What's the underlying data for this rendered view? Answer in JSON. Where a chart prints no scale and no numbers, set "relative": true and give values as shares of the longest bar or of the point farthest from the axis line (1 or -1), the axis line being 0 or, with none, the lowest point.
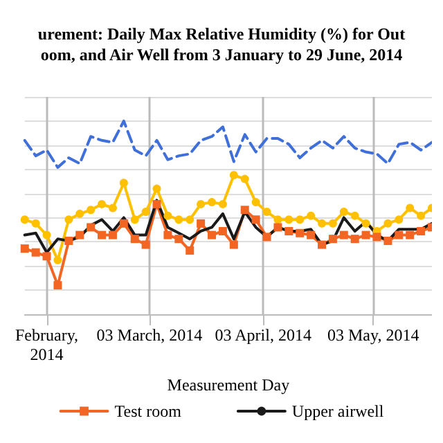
{
  "chart_data": {
    "type": "line",
    "title": "urement: Daily Max Relative Humidity (%) for Out\noom, and Air Well from 3 January to 29 June, 2014",
    "xlabel": "Measurement Day",
    "relative": true,
    "grid": true,
    "legend": "bottom",
    "x": [
      "2014-01-28",
      "2014-01-31",
      "2014-02-03",
      "2014-02-06",
      "2014-02-09",
      "2014-02-12",
      "2014-02-15",
      "2014-02-18",
      "2014-02-21",
      "2014-02-24",
      "2014-02-27",
      "2014-03-02",
      "2014-03-05",
      "2014-03-08",
      "2014-03-11",
      "2014-03-14",
      "2014-03-17",
      "2014-03-20",
      "2014-03-23",
      "2014-03-26",
      "2014-03-29",
      "2014-04-01",
      "2014-04-04",
      "2014-04-07",
      "2014-04-10",
      "2014-04-13",
      "2014-04-16",
      "2014-04-19",
      "2014-04-22",
      "2014-04-25",
      "2014-04-28",
      "2014-05-01",
      "2014-05-04",
      "2014-05-07",
      "2014-05-10",
      "2014-05-13",
      "2014-05-16",
      "2014-05-19"
    ],
    "xlim": [
      "2014-01-28",
      "2014-05-19"
    ],
    "xticks": [
      {
        "value": "2014-02-03",
        "label": "February,\n2014"
      },
      {
        "value": "2014-03-03",
        "label": "03 March, 2014"
      },
      {
        "value": "2014-04-03",
        "label": "03 April, 2014"
      },
      {
        "value": "2014-05-03",
        "label": "03 May, 2014"
      }
    ],
    "series": [
      {
        "color": "#3f6fd8",
        "marker": "none",
        "line_style": "dashed",
        "values": [
          0.9,
          0.82,
          0.85,
          0.76,
          0.81,
          0.78,
          0.92,
          0.9,
          0.89,
          1.0,
          0.85,
          0.82,
          0.9,
          0.8,
          0.82,
          0.83,
          0.9,
          0.92,
          0.97,
          0.79,
          0.93,
          0.84,
          0.91,
          0.91,
          0.88,
          0.81,
          0.86,
          0.9,
          0.86,
          0.92,
          0.86,
          0.84,
          0.83,
          0.78,
          0.88,
          0.89,
          0.85,
          0.89
        ]
      },
      {
        "color": "#ffc000",
        "marker": "circle",
        "line_style": "solid",
        "values": [
          0.49,
          0.47,
          0.41,
          0.28,
          0.49,
          0.52,
          0.54,
          0.57,
          0.55,
          0.68,
          0.49,
          0.53,
          0.65,
          0.51,
          0.49,
          0.49,
          0.57,
          0.58,
          0.57,
          0.72,
          0.7,
          0.58,
          0.53,
          0.49,
          0.49,
          0.49,
          0.51,
          0.47,
          0.47,
          0.53,
          0.51,
          0.47,
          0.43,
          0.47,
          0.49,
          0.55,
          0.51,
          0.55
        ]
      },
      {
        "name": "Test room",
        "color": "#f26522",
        "marker": "square",
        "line_style": "solid",
        "values": [
          0.34,
          0.32,
          0.3,
          0.15,
          0.38,
          0.41,
          0.45,
          0.41,
          0.41,
          0.47,
          0.39,
          0.36,
          0.57,
          0.41,
          0.39,
          0.33,
          0.47,
          0.41,
          0.43,
          0.36,
          0.54,
          0.49,
          0.4,
          0.45,
          0.43,
          0.42,
          0.41,
          0.36,
          0.39,
          0.41,
          0.39,
          0.41,
          0.4,
          0.38,
          0.41,
          0.41,
          0.43,
          0.45
        ]
      },
      {
        "name": "Upper airwell",
        "color": "#1a1a1a",
        "marker": "none",
        "line_style": "solid",
        "values": [
          0.41,
          0.42,
          0.32,
          0.39,
          0.38,
          0.4,
          0.46,
          0.49,
          0.43,
          0.5,
          0.41,
          0.41,
          0.59,
          0.45,
          0.42,
          0.39,
          0.43,
          0.45,
          0.52,
          0.39,
          0.53,
          0.45,
          0.4,
          0.45,
          0.43,
          0.43,
          0.44,
          0.36,
          0.38,
          0.5,
          0.43,
          0.48,
          0.41,
          0.38,
          0.44,
          0.44,
          0.44,
          0.47
        ]
      }
    ]
  }
}
